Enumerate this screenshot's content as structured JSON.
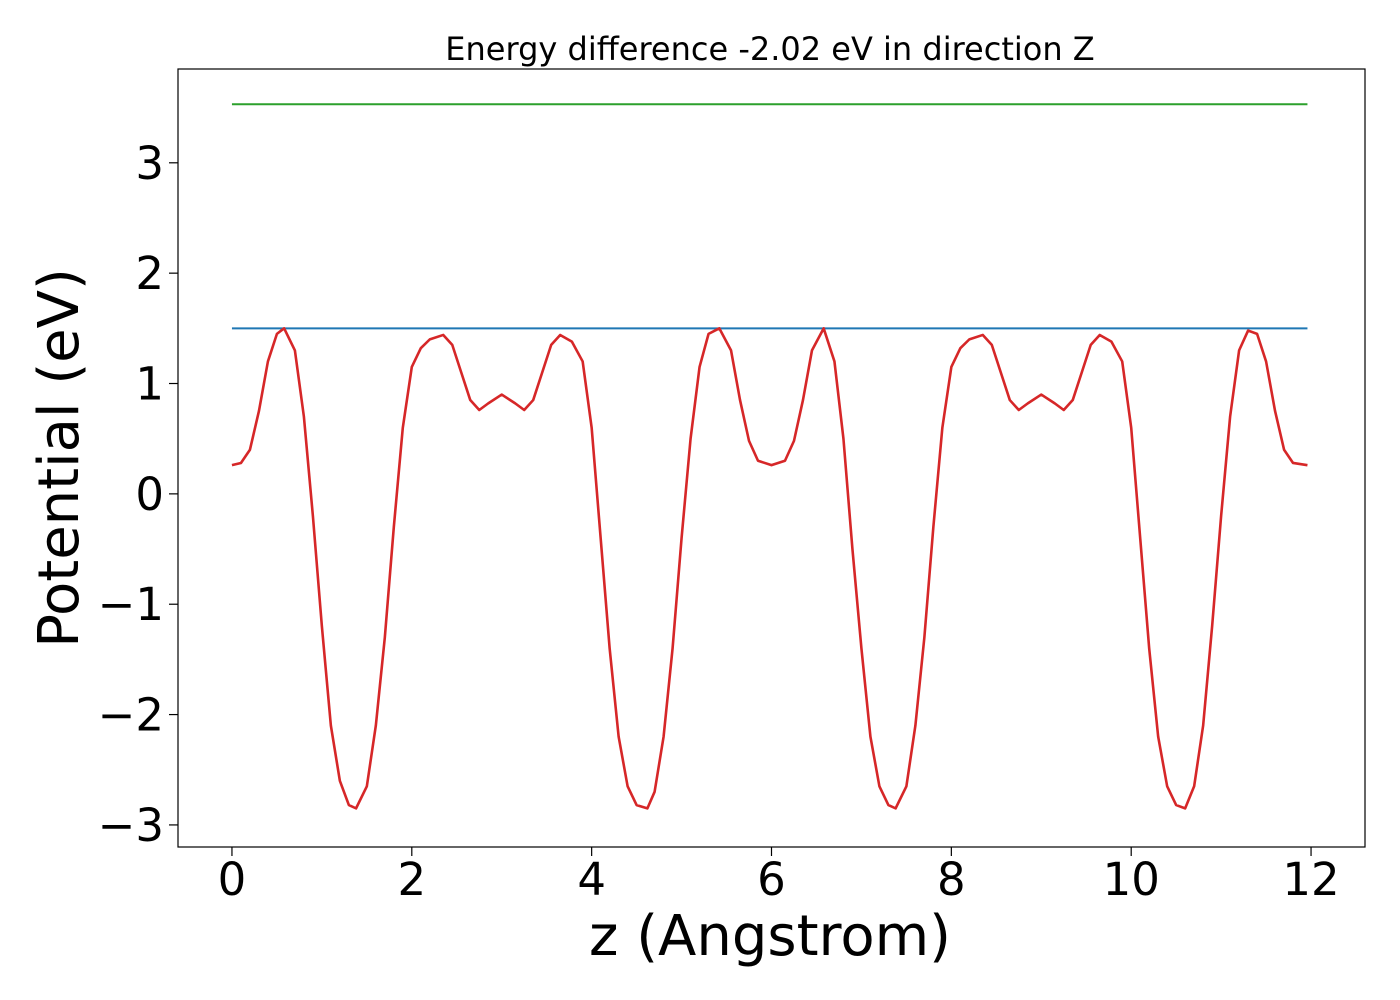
{
  "chart_data": {
    "type": "line",
    "title": "Energy difference -2.02 eV in direction Z",
    "xlabel": "z (Angstrom)",
    "ylabel": "Potential (eV)",
    "xlim": [
      -0.6,
      12.6
    ],
    "ylim": [
      -3.2,
      3.85
    ],
    "xticks": [
      "0",
      "2",
      "4",
      "6",
      "8",
      "10",
      "12"
    ],
    "yticks": [
      "−3",
      "−2",
      "−1",
      "0",
      "1",
      "2",
      "3"
    ],
    "grid": false,
    "series": [
      {
        "color": "#2ca02c",
        "x": [
          0,
          11.96
        ],
        "y": [
          3.53,
          3.53
        ]
      },
      {
        "color": "#1f77b4",
        "x": [
          0,
          11.96
        ],
        "y": [
          1.5,
          1.5
        ]
      },
      {
        "color": "#d62728",
        "x": [
          0,
          0.1,
          0.2,
          0.3,
          0.4,
          0.5,
          0.58,
          0.7,
          0.8,
          0.9,
          1.0,
          1.1,
          1.2,
          1.3,
          1.38,
          1.5,
          1.6,
          1.7,
          1.8,
          1.9,
          2.0,
          2.1,
          2.2,
          2.35,
          2.45,
          2.55,
          2.65,
          2.75,
          2.85,
          3.0,
          3.15,
          3.25,
          3.35,
          3.45,
          3.55,
          3.65,
          3.78,
          3.9,
          4.0,
          4.1,
          4.2,
          4.3,
          4.4,
          4.5,
          4.62,
          4.7,
          4.8,
          4.9,
          5.0,
          5.1,
          5.2,
          5.3,
          5.42,
          5.55,
          5.65,
          5.75,
          5.85,
          6.0,
          6.15,
          6.25,
          6.35,
          6.45,
          6.58,
          6.7,
          6.8,
          6.9,
          7.0,
          7.1,
          7.2,
          7.3,
          7.38,
          7.5,
          7.6,
          7.7,
          7.8,
          7.9,
          8.0,
          8.1,
          8.2,
          8.35,
          8.45,
          8.55,
          8.65,
          8.75,
          8.85,
          9.0,
          9.15,
          9.25,
          9.35,
          9.45,
          9.55,
          9.65,
          9.78,
          9.9,
          10.0,
          10.1,
          10.2,
          10.3,
          10.4,
          10.5,
          10.6,
          10.7,
          10.8,
          10.9,
          11.0,
          11.1,
          11.2,
          11.3,
          11.4,
          11.5,
          11.6,
          11.7,
          11.8,
          11.96
        ],
        "y": [
          0.26,
          0.28,
          0.4,
          0.75,
          1.2,
          1.45,
          1.5,
          1.3,
          0.7,
          -0.2,
          -1.2,
          -2.1,
          -2.6,
          -2.82,
          -2.85,
          -2.65,
          -2.1,
          -1.3,
          -0.3,
          0.6,
          1.15,
          1.32,
          1.4,
          1.44,
          1.35,
          1.1,
          0.85,
          0.76,
          0.82,
          0.9,
          0.82,
          0.76,
          0.85,
          1.1,
          1.35,
          1.44,
          1.38,
          1.2,
          0.6,
          -0.4,
          -1.4,
          -2.2,
          -2.65,
          -2.82,
          -2.85,
          -2.7,
          -2.2,
          -1.4,
          -0.4,
          0.5,
          1.15,
          1.45,
          1.5,
          1.3,
          0.85,
          0.48,
          0.3,
          0.26,
          0.3,
          0.48,
          0.85,
          1.3,
          1.5,
          1.2,
          0.5,
          -0.5,
          -1.4,
          -2.2,
          -2.65,
          -2.82,
          -2.85,
          -2.65,
          -2.1,
          -1.3,
          -0.3,
          0.6,
          1.15,
          1.32,
          1.4,
          1.44,
          1.35,
          1.1,
          0.85,
          0.76,
          0.82,
          0.9,
          0.82,
          0.76,
          0.85,
          1.1,
          1.35,
          1.44,
          1.38,
          1.2,
          0.6,
          -0.4,
          -1.4,
          -2.2,
          -2.65,
          -2.82,
          -2.85,
          -2.65,
          -2.1,
          -1.2,
          -0.2,
          0.7,
          1.3,
          1.48,
          1.45,
          1.2,
          0.75,
          0.4,
          0.28,
          0.26
        ]
      }
    ]
  }
}
